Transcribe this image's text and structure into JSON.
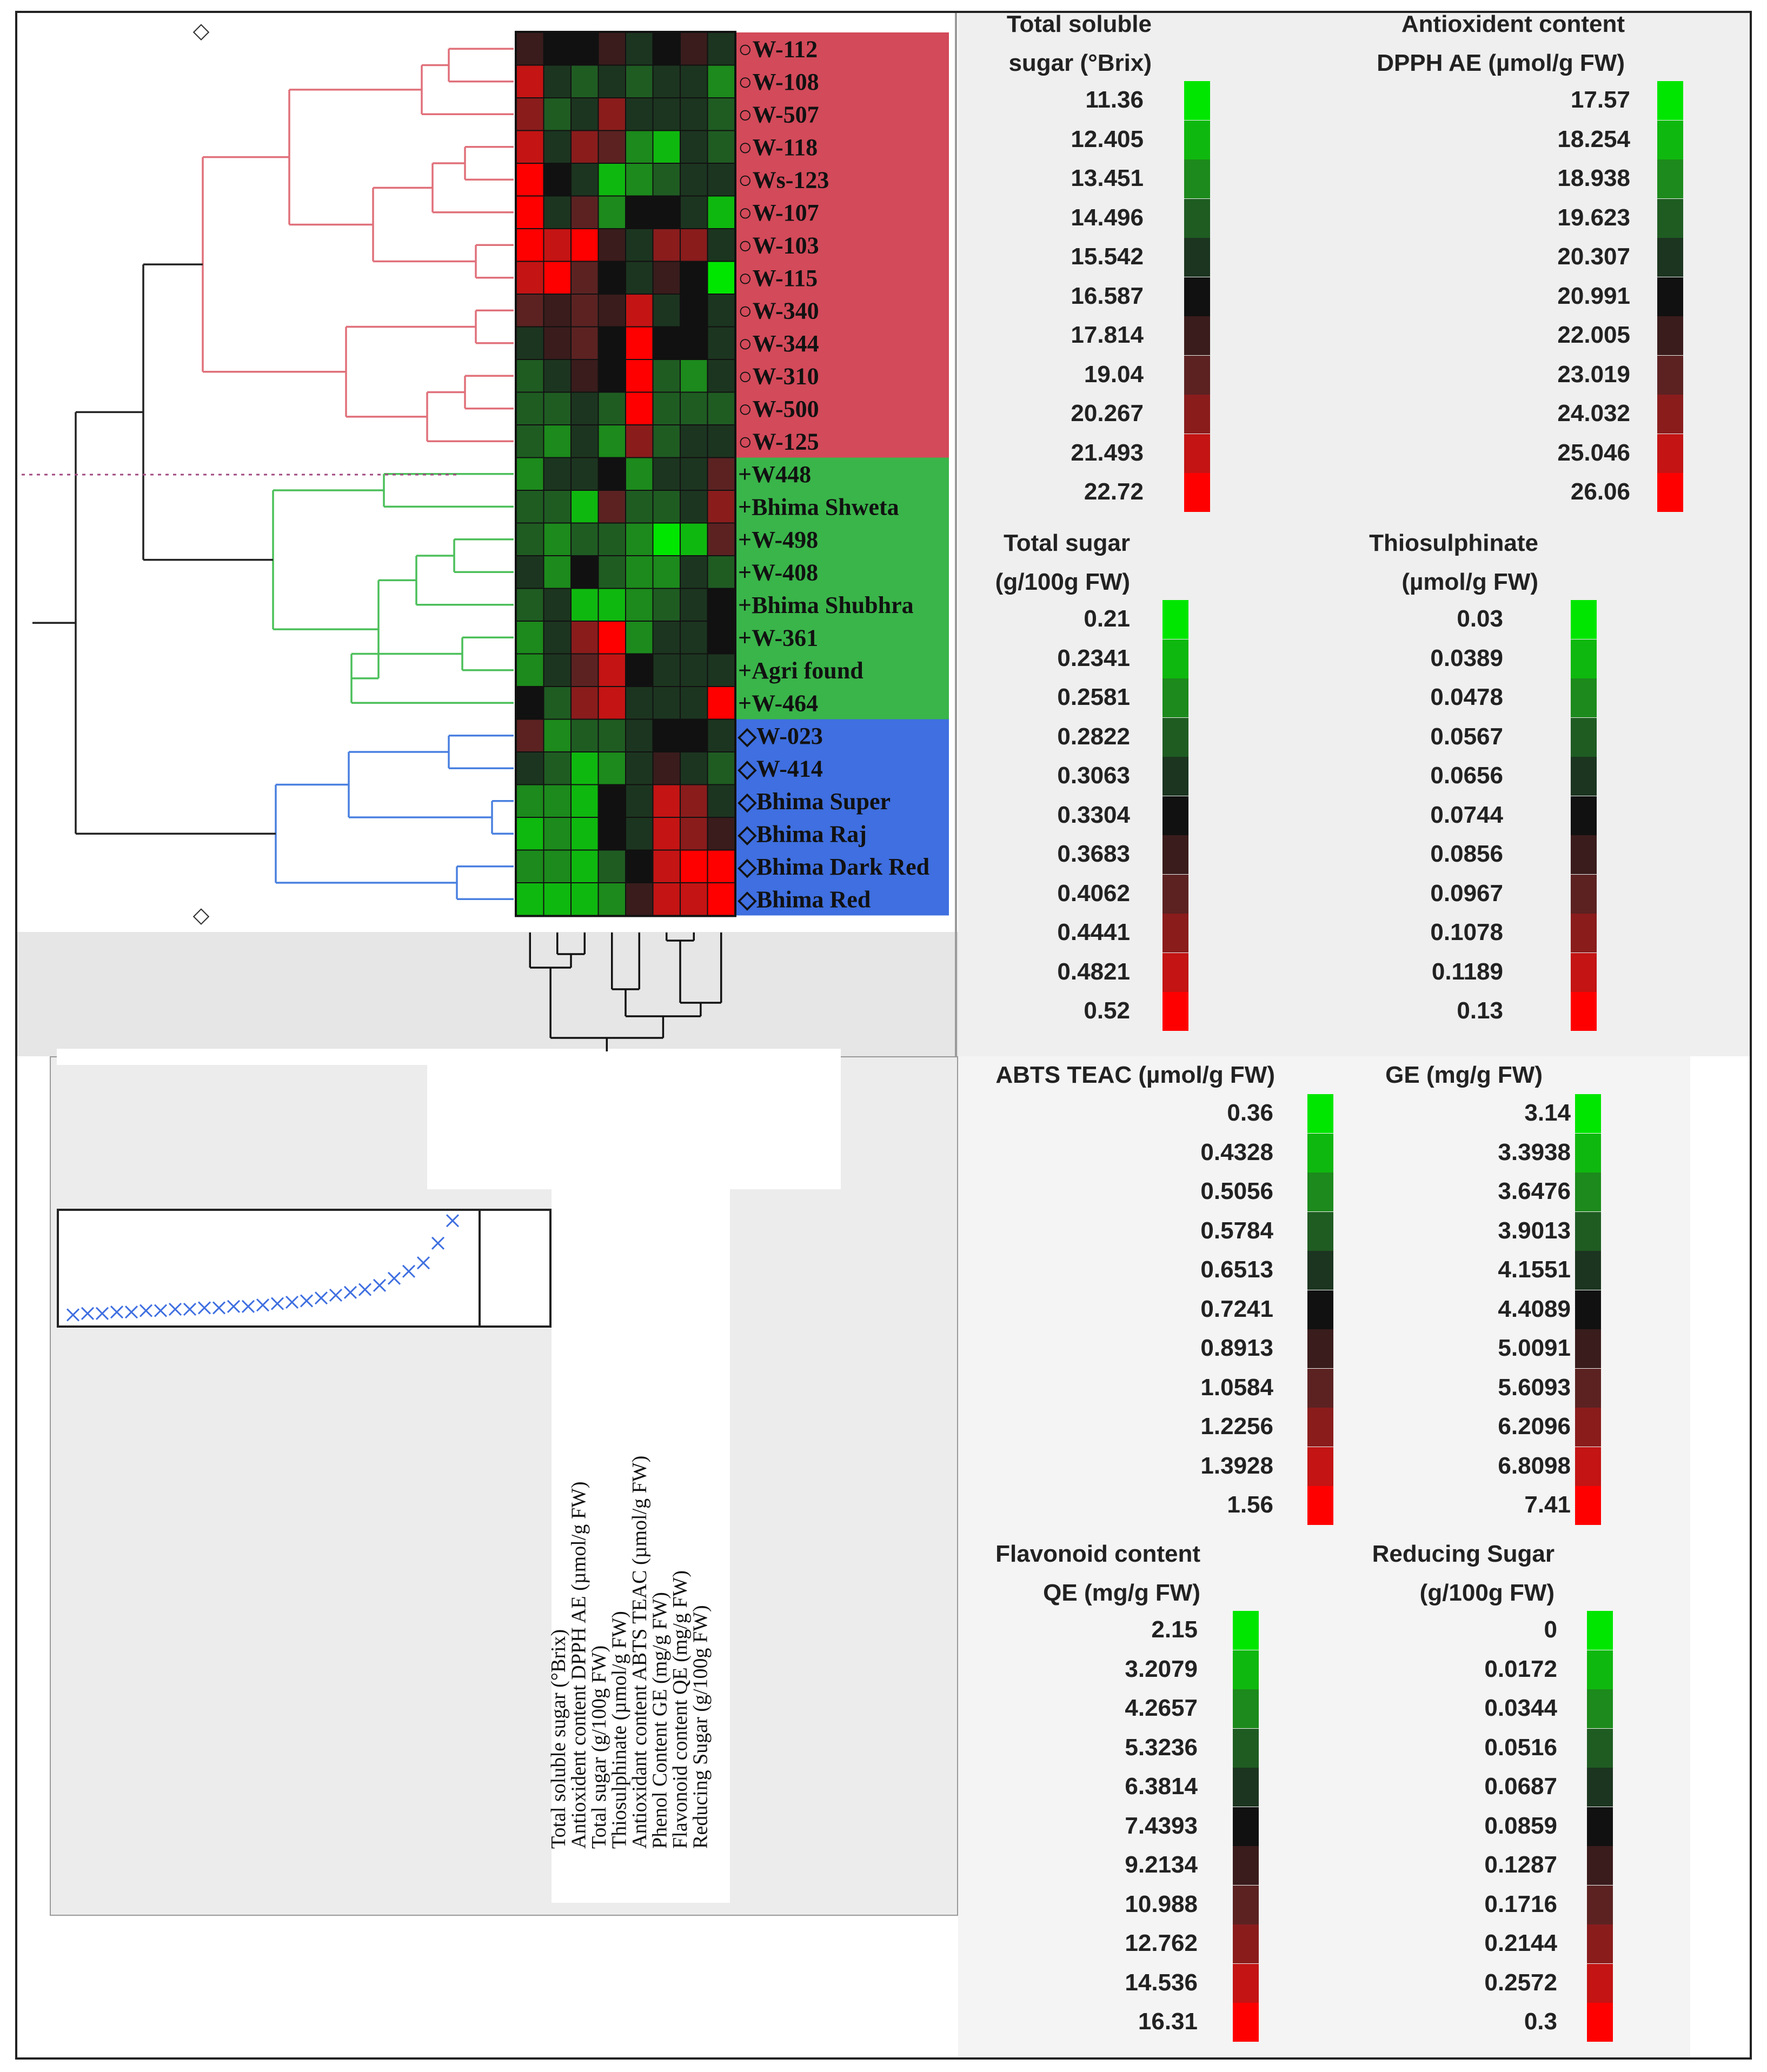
{
  "chart_data": {
    "type": "heatmap",
    "rows": [
      {
        "label": "W-112",
        "group": "red"
      },
      {
        "label": "W-108",
        "group": "red"
      },
      {
        "label": "W-507",
        "group": "red"
      },
      {
        "label": "W-118",
        "group": "red"
      },
      {
        "label": "Ws-123",
        "group": "red"
      },
      {
        "label": "W-107",
        "group": "red"
      },
      {
        "label": "W-103",
        "group": "red"
      },
      {
        "label": "W-115",
        "group": "red"
      },
      {
        "label": "W-340",
        "group": "red"
      },
      {
        "label": "W-344",
        "group": "red"
      },
      {
        "label": "W-310",
        "group": "red"
      },
      {
        "label": "W-500",
        "group": "red"
      },
      {
        "label": "W-125",
        "group": "red"
      },
      {
        "label": "W448",
        "group": "green"
      },
      {
        "label": "Bhima Shweta",
        "group": "green"
      },
      {
        "label": "W-498",
        "group": "green"
      },
      {
        "label": "W-408",
        "group": "green"
      },
      {
        "label": "Bhima Shubhra",
        "group": "green"
      },
      {
        "label": "W-361",
        "group": "green"
      },
      {
        "label": "Agri found",
        "group": "green"
      },
      {
        "label": "W-464",
        "group": "green"
      },
      {
        "label": "W-023",
        "group": "blue"
      },
      {
        "label": "W-414",
        "group": "blue"
      },
      {
        "label": "Bhima Super",
        "group": "blue"
      },
      {
        "label": "Bhima Raj",
        "group": "blue"
      },
      {
        "label": "Bhima Dark Red",
        "group": "blue"
      },
      {
        "label": "Bhima Red",
        "group": "blue"
      }
    ],
    "columns": [
      "Total soluble sugar (°Brix)",
      "Antioxident content DPPH AE (µmol/g FW)",
      "Total sugar (g/100g FW)",
      "Thiosulphinate (µmol/g FW)",
      "Antioxidant content ABTS TEAC (µmol/g FW)",
      "Phenol Content GE (mg/g FW)",
      "Flavonoid content QE (mg/g FW)",
      "Reducing Sugar (g/100g FW)"
    ],
    "levels": [
      [
        6,
        5,
        5,
        6,
        4,
        5,
        6,
        4
      ],
      [
        9,
        4,
        3,
        4,
        3,
        4,
        4,
        2
      ],
      [
        8,
        3,
        4,
        8,
        4,
        4,
        4,
        3
      ],
      [
        9,
        4,
        8,
        7,
        2,
        1,
        4,
        3
      ],
      [
        10,
        5,
        4,
        1,
        2,
        3,
        4,
        4
      ],
      [
        10,
        4,
        7,
        2,
        5,
        5,
        4,
        1
      ],
      [
        10,
        9,
        10,
        6,
        4,
        8,
        8,
        4
      ],
      [
        9,
        10,
        7,
        5,
        4,
        6,
        5,
        0
      ],
      [
        7,
        6,
        7,
        6,
        9,
        4,
        5,
        4
      ],
      [
        4,
        6,
        7,
        5,
        10,
        5,
        5,
        4
      ],
      [
        3,
        4,
        6,
        5,
        10,
        3,
        2,
        4
      ],
      [
        3,
        3,
        4,
        3,
        10,
        3,
        3,
        3
      ],
      [
        3,
        2,
        4,
        2,
        8,
        3,
        4,
        4
      ],
      [
        2,
        4,
        4,
        5,
        2,
        4,
        4,
        7
      ],
      [
        3,
        3,
        1,
        7,
        3,
        3,
        4,
        8
      ],
      [
        3,
        2,
        3,
        3,
        2,
        0,
        1,
        7
      ],
      [
        4,
        2,
        5,
        3,
        2,
        2,
        4,
        3
      ],
      [
        3,
        4,
        1,
        1,
        2,
        3,
        4,
        5
      ],
      [
        2,
        4,
        8,
        10,
        2,
        4,
        4,
        5
      ],
      [
        2,
        4,
        7,
        9,
        5,
        4,
        4,
        4
      ],
      [
        5,
        3,
        8,
        9,
        4,
        4,
        4,
        10
      ],
      [
        7,
        2,
        3,
        3,
        4,
        5,
        5,
        4
      ],
      [
        4,
        3,
        1,
        2,
        4,
        6,
        4,
        3
      ],
      [
        2,
        2,
        1,
        5,
        4,
        9,
        8,
        4
      ],
      [
        1,
        2,
        1,
        5,
        4,
        9,
        8,
        6
      ],
      [
        2,
        2,
        1,
        3,
        5,
        9,
        10,
        10
      ],
      [
        1,
        1,
        1,
        2,
        6,
        9,
        9,
        10
      ]
    ],
    "legends": [
      {
        "title": [
          "Total soluble",
          "sugar (°Brix)"
        ],
        "values": [
          "11.36",
          "12.405",
          "13.451",
          "14.496",
          "15.542",
          "16.587",
          "17.814",
          "19.04",
          "20.267",
          "21.493",
          "22.72"
        ]
      },
      {
        "title": [
          "Antioxident content",
          "DPPH AE (µmol/g FW)"
        ],
        "values": [
          "17.57",
          "18.254",
          "18.938",
          "19.623",
          "20.307",
          "20.991",
          "22.005",
          "23.019",
          "24.032",
          "25.046",
          "26.06"
        ]
      },
      {
        "title": [
          "Total sugar",
          "(g/100g FW)"
        ],
        "values": [
          "0.21",
          "0.2341",
          "0.2581",
          "0.2822",
          "0.3063",
          "0.3304",
          "0.3683",
          "0.4062",
          "0.4441",
          "0.4821",
          "0.52"
        ]
      },
      {
        "title": [
          "Thiosulphinate",
          "(µmol/g FW)"
        ],
        "values": [
          "0.03",
          "0.0389",
          "0.0478",
          "0.0567",
          "0.0656",
          "0.0744",
          "0.0856",
          "0.0967",
          "0.1078",
          "0.1189",
          "0.13"
        ]
      },
      {
        "title": [
          "ABTS TEAC (µmol/g FW)"
        ],
        "values": [
          "0.36",
          "0.4328",
          "0.5056",
          "0.5784",
          "0.6513",
          "0.7241",
          "0.8913",
          "1.0584",
          "1.2256",
          "1.3928",
          "1.56"
        ]
      },
      {
        "title": [
          "GE (mg/g FW)"
        ],
        "values": [
          "3.14",
          "3.3938",
          "3.6476",
          "3.9013",
          "4.1551",
          "4.4089",
          "5.0091",
          "5.6093",
          "6.2096",
          "6.8098",
          "7.41"
        ]
      },
      {
        "title": [
          "Flavonoid content",
          "QE (mg/g FW)"
        ],
        "values": [
          "2.15",
          "3.2079",
          "4.2657",
          "5.3236",
          "6.3814",
          "7.4393",
          "9.2134",
          "10.988",
          "12.762",
          "14.536",
          "16.31"
        ]
      },
      {
        "title": [
          "Reducing Sugar",
          "(g/100g FW)"
        ],
        "values": [
          "0",
          "0.0172",
          "0.0344",
          "0.0516",
          "0.0687",
          "0.0859",
          "0.1287",
          "0.1716",
          "0.2144",
          "0.2572",
          "0.3"
        ]
      }
    ],
    "scale_colors": [
      "#00e600",
      "#0fb80f",
      "#1c8a1c",
      "#1f5c22",
      "#1c3520",
      "#111111",
      "#3a1c1c",
      "#5c2222",
      "#8a1c1c",
      "#c41414",
      "#ff0000"
    ],
    "group_colors": {
      "red": "#d34a5a",
      "green": "#3ab54a",
      "blue": "#3f6fe0"
    },
    "group_markers": {
      "red": "○",
      "green": "+",
      "blue": "◇"
    },
    "dendrogram_colors": {
      "red": "#e0707a",
      "green": "#4cbf5a",
      "blue": "#4a80e0",
      "root": "#222222"
    },
    "curve": {
      "type": "scatter",
      "marker": "x",
      "color": "#3f6fe0",
      "values": [
        1,
        2,
        2,
        3,
        3,
        4,
        4,
        5,
        5,
        6,
        6,
        7,
        7,
        8,
        9,
        10,
        11,
        13,
        15,
        17,
        19,
        22,
        27,
        32,
        38,
        52,
        68,
        82
      ]
    }
  }
}
